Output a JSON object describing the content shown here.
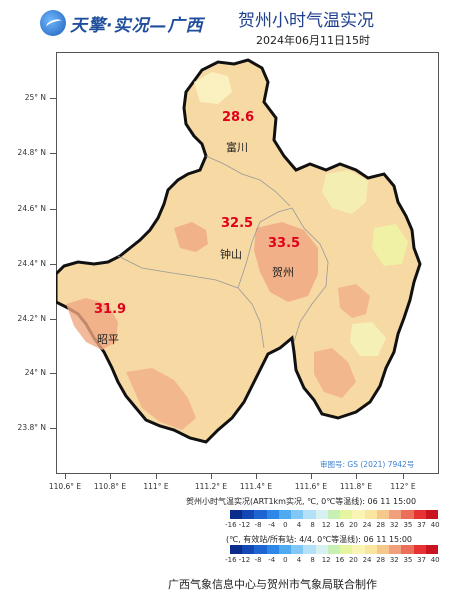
{
  "header": {
    "logo_text": "天擎·实况—广西",
    "title": "贺州小时气温实况",
    "datetime": "2024年06月11日15时"
  },
  "map": {
    "lat_labels": [
      "25° N",
      "24.8° N",
      "24.6° N",
      "24.4° N",
      "24.2° N",
      "24° N",
      "23.8° N"
    ],
    "lon_labels": [
      "110.6° E",
      "110.8° E",
      "111° E",
      "111.2° E",
      "111.4° E",
      "111.6° E",
      "111.8° E",
      "112° E"
    ],
    "cities": [
      {
        "name": "富川",
        "temp": "28.6"
      },
      {
        "name": "钟山",
        "temp": "32.5"
      },
      {
        "name": "贺州",
        "temp": "33.5"
      },
      {
        "name": "昭平",
        "temp": "31.9"
      }
    ],
    "approval": "审图号: GS (2021) 7942号"
  },
  "legend": {
    "label1": "贺州小时气温实况(ART1km实况, ℃, 0℃等温线): 06 11 15:00",
    "label2": "(℃, 有效站/所有站: 4/4, 0℃等温线): 06 11 15:00",
    "ticks": [
      "-16",
      "-12",
      "-8",
      "-4",
      "0",
      "4",
      "8",
      "12",
      "16",
      "20",
      "24",
      "28",
      "32",
      "35",
      "37",
      "40"
    ],
    "colors": [
      "#0a2d8c",
      "#1446b4",
      "#1e64d2",
      "#2d87e6",
      "#50aaf0",
      "#82c8f5",
      "#b4e1fa",
      "#d7f0f0",
      "#c8f0b4",
      "#e6f5a0",
      "#faf5b4",
      "#fae6a0",
      "#f5c88c",
      "#f0a07d",
      "#eb6e5a",
      "#e63232",
      "#c8141e"
    ]
  },
  "footer": "广西气象信息中心与贺州市气象局联合制作"
}
